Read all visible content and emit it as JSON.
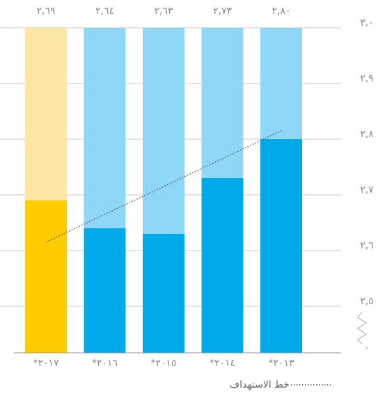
{
  "chart_data": {
    "type": "bar",
    "categories": [
      "*٢٠١٣",
      "*٢٠١٤",
      "*٢٠١٥",
      "*٢٠١٦",
      "*٢٠١٧"
    ],
    "values": [
      2.8,
      2.73,
      2.63,
      2.64,
      2.69
    ],
    "value_labels": [
      "٢,٨٠",
      "٢,٧٣",
      "٢,٦٣",
      "٢,٦٤",
      "٢,٦٩"
    ],
    "colors": [
      "#00a9e8",
      "#00a9e8",
      "#00a9e8",
      "#00a9e8",
      "#ffcc00"
    ],
    "background_colors": [
      "#8fd7f7",
      "#8fd7f7",
      "#8fd7f7",
      "#8fd7f7",
      "#fde7a6"
    ],
    "ylim": [
      2.5,
      3.0
    ],
    "yticks": [
      {
        "value": 0,
        "label": "٠"
      },
      {
        "value": 2.5,
        "label": "٢,٥"
      },
      {
        "value": 2.6,
        "label": "٢,٦"
      },
      {
        "value": 2.7,
        "label": "٢,٧"
      },
      {
        "value": 2.8,
        "label": "٢,٨"
      },
      {
        "value": 2.9,
        "label": "٢,٩"
      },
      {
        "value": 3.0,
        "label": "٣,٠"
      }
    ],
    "axis_break": true,
    "grid": true,
    "target_line": {
      "name": "خط الاستهداف",
      "color": "#555555",
      "values": [
        2.815,
        2.765,
        2.715,
        2.665,
        2.615
      ]
    }
  }
}
